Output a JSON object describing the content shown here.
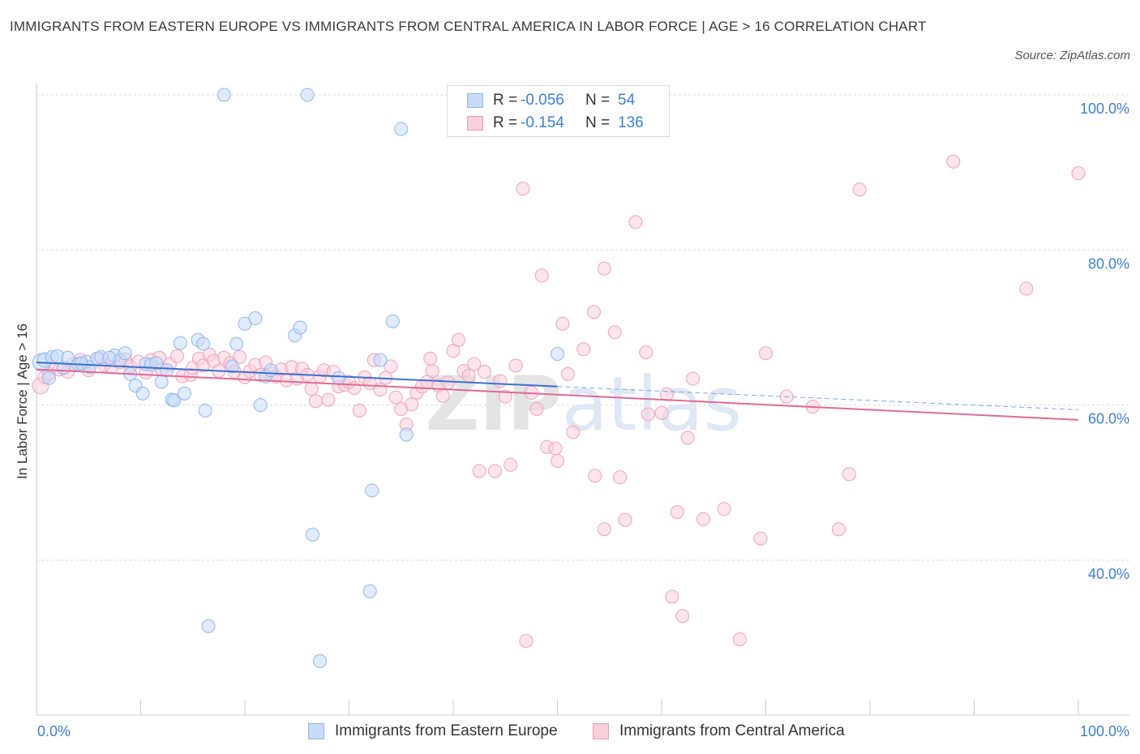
{
  "title": "IMMIGRANTS FROM EASTERN EUROPE VS IMMIGRANTS FROM CENTRAL AMERICA IN LABOR FORCE | AGE > 16 CORRELATION CHART",
  "source": "Source: ZipAtlas.com",
  "watermark": "ZIPatlas",
  "legend": {
    "series1": {
      "r_label": "R =",
      "r_value": "-0.056",
      "n_label": "N =",
      "n_value": "54",
      "color": "#8fb8f0",
      "fill": "#c7dbf7"
    },
    "series2": {
      "r_label": "R =",
      "r_value": "-0.154",
      "n_label": "N =",
      "n_value": "136",
      "color": "#f29bb5",
      "fill": "#f9cfdc"
    }
  },
  "chart_data": {
    "type": "scatter",
    "title": "IMMIGRANTS FROM EASTERN EUROPE VS IMMIGRANTS FROM CENTRAL AMERICA IN LABOR FORCE | AGE > 16 CORRELATION CHART",
    "xlabel": "",
    "ylabel": "In Labor Force | Age > 16",
    "xlim": [
      0,
      100
    ],
    "ylim": [
      20,
      100
    ],
    "x_tick_labels": [
      "0.0%",
      "100.0%"
    ],
    "y_tick_labels": [
      "100.0%",
      "80.0%",
      "60.0%",
      "40.0%"
    ],
    "y_ticks": [
      100,
      80,
      60,
      40
    ],
    "grid": true,
    "legend_position": "top-center",
    "series": [
      {
        "name": "Immigrants from Eastern Europe",
        "color": "#5b93e0",
        "fill": "#c7dbf7",
        "trend": {
          "x": [
            0,
            50
          ],
          "y": [
            65.5,
            62.4
          ],
          "extended_to": [
            100,
            59.4
          ]
        },
        "points": [
          [
            0.5,
            65.5,
            9
          ],
          [
            0.8,
            65.8,
            7
          ],
          [
            1.2,
            63.5,
            6
          ],
          [
            1.5,
            66.2,
            6
          ],
          [
            2.0,
            66.3,
            6
          ],
          [
            2.6,
            64.8,
            6
          ],
          [
            3.0,
            66.1,
            6
          ],
          [
            4.0,
            65.3,
            6
          ],
          [
            4.8,
            65.6,
            6
          ],
          [
            5.1,
            64.9,
            6
          ],
          [
            5.8,
            66.0,
            6
          ],
          [
            6.2,
            66.2,
            6
          ],
          [
            7.5,
            66.4,
            6
          ],
          [
            8.0,
            65.8,
            6
          ],
          [
            8.5,
            66.7,
            6
          ],
          [
            9.0,
            64.0,
            6
          ],
          [
            9.5,
            62.5,
            6
          ],
          [
            10.2,
            61.5,
            6
          ],
          [
            10.5,
            65.3,
            6
          ],
          [
            11.0,
            65.2,
            6
          ],
          [
            11.5,
            65.4,
            6
          ],
          [
            12.0,
            63.0,
            6
          ],
          [
            12.5,
            64.5,
            6
          ],
          [
            13.0,
            60.7,
            6
          ],
          [
            13.2,
            60.6,
            6
          ],
          [
            13.8,
            68.0,
            6
          ],
          [
            14.2,
            61.5,
            6
          ],
          [
            15.5,
            68.4,
            6
          ],
          [
            16.0,
            67.9,
            6
          ],
          [
            16.2,
            59.3,
            6
          ],
          [
            16.5,
            31.5,
            6
          ],
          [
            18.0,
            100.0,
            6
          ],
          [
            18.8,
            65.0,
            6
          ],
          [
            19.2,
            67.9,
            6
          ],
          [
            20.0,
            70.5,
            6
          ],
          [
            21.0,
            71.2,
            6
          ],
          [
            21.5,
            60.0,
            6
          ],
          [
            22.0,
            63.7,
            6
          ],
          [
            22.5,
            64.5,
            6
          ],
          [
            24.8,
            69.0,
            6
          ],
          [
            25.3,
            70.0,
            6
          ],
          [
            26.0,
            100.0,
            6
          ],
          [
            26.5,
            43.3,
            6
          ],
          [
            27.2,
            27.0,
            6
          ],
          [
            29.0,
            63.5,
            6
          ],
          [
            32.0,
            36.0,
            6
          ],
          [
            32.2,
            49.0,
            6
          ],
          [
            33.0,
            65.8,
            6
          ],
          [
            34.2,
            70.8,
            6
          ],
          [
            35.0,
            95.6,
            6
          ],
          [
            35.5,
            56.2,
            6
          ],
          [
            50.0,
            66.6,
            6
          ],
          [
            4.3,
            65.4,
            6
          ],
          [
            7.0,
            66.1,
            6
          ]
        ]
      },
      {
        "name": "Immigrants from Central America",
        "color": "#e8739a",
        "fill": "#f9cfdc",
        "trend": {
          "x": [
            0,
            100
          ],
          "y": [
            64.6,
            58.1
          ]
        },
        "points": [
          [
            0.4,
            62.5,
            8
          ],
          [
            0.8,
            63.6,
            6
          ],
          [
            1.2,
            64.0,
            6
          ],
          [
            1.5,
            65.0,
            6
          ],
          [
            2.2,
            64.6,
            6
          ],
          [
            3.0,
            64.3,
            6
          ],
          [
            3.5,
            65.3,
            6
          ],
          [
            4.2,
            65.8,
            6
          ],
          [
            5.0,
            64.5,
            6
          ],
          [
            6.0,
            66.0,
            6
          ],
          [
            6.5,
            65.2,
            6
          ],
          [
            7.2,
            64.9,
            6
          ],
          [
            8.0,
            65.5,
            6
          ],
          [
            8.5,
            65.9,
            6
          ],
          [
            9.0,
            65.0,
            6
          ],
          [
            9.8,
            65.6,
            6
          ],
          [
            10.5,
            64.2,
            6
          ],
          [
            11.0,
            65.8,
            6
          ],
          [
            11.8,
            66.1,
            6
          ],
          [
            12.0,
            64.6,
            6
          ],
          [
            12.8,
            65.3,
            6
          ],
          [
            13.5,
            66.3,
            6
          ],
          [
            14.0,
            63.7,
            6
          ],
          [
            14.8,
            63.9,
            6
          ],
          [
            15.0,
            64.8,
            6
          ],
          [
            15.6,
            66.0,
            6
          ],
          [
            16.0,
            65.1,
            6
          ],
          [
            16.6,
            66.5,
            6
          ],
          [
            17.0,
            65.7,
            6
          ],
          [
            17.5,
            64.4,
            6
          ],
          [
            18.0,
            66.1,
            6
          ],
          [
            18.6,
            65.4,
            6
          ],
          [
            19.0,
            64.3,
            6
          ],
          [
            19.5,
            66.2,
            6
          ],
          [
            20.0,
            63.6,
            6
          ],
          [
            20.5,
            64.4,
            6
          ],
          [
            21.0,
            65.2,
            6
          ],
          [
            21.5,
            63.9,
            6
          ],
          [
            22.0,
            65.5,
            6
          ],
          [
            22.6,
            64.0,
            6
          ],
          [
            23.0,
            63.7,
            6
          ],
          [
            23.5,
            64.6,
            6
          ],
          [
            24.0,
            63.2,
            6
          ],
          [
            24.5,
            64.9,
            6
          ],
          [
            25.0,
            63.4,
            6
          ],
          [
            25.5,
            64.7,
            6
          ],
          [
            26.0,
            63.9,
            6
          ],
          [
            26.4,
            62.1,
            6
          ],
          [
            26.8,
            60.5,
            6
          ],
          [
            27.2,
            63.7,
            6
          ],
          [
            27.6,
            64.5,
            6
          ],
          [
            28.0,
            60.7,
            6
          ],
          [
            28.5,
            64.3,
            6
          ],
          [
            29.0,
            62.4,
            6
          ],
          [
            29.6,
            62.6,
            6
          ],
          [
            30.0,
            63.0,
            6
          ],
          [
            30.5,
            62.2,
            6
          ],
          [
            31.0,
            59.3,
            6
          ],
          [
            31.5,
            63.6,
            6
          ],
          [
            32.0,
            62.8,
            6
          ],
          [
            32.4,
            65.8,
            6
          ],
          [
            33.0,
            62.0,
            6
          ],
          [
            33.5,
            63.5,
            6
          ],
          [
            34.0,
            65.0,
            6
          ],
          [
            34.5,
            61.0,
            6
          ],
          [
            35.0,
            59.5,
            6
          ],
          [
            35.5,
            57.5,
            6
          ],
          [
            36.0,
            60.1,
            6
          ],
          [
            36.5,
            61.6,
            6
          ],
          [
            37.0,
            62.4,
            6
          ],
          [
            37.5,
            63.0,
            6
          ],
          [
            38.0,
            64.4,
            6
          ],
          [
            38.6,
            62.5,
            6
          ],
          [
            39.0,
            61.2,
            6
          ],
          [
            39.5,
            62.9,
            6
          ],
          [
            40.0,
            67.0,
            6
          ],
          [
            40.5,
            68.4,
            6
          ],
          [
            41.0,
            64.4,
            6
          ],
          [
            41.5,
            63.8,
            6
          ],
          [
            42.0,
            65.3,
            6
          ],
          [
            42.5,
            51.5,
            6
          ],
          [
            43.0,
            64.3,
            6
          ],
          [
            44.0,
            51.5,
            6
          ],
          [
            44.5,
            63.1,
            6
          ],
          [
            45.0,
            61.1,
            6
          ],
          [
            45.5,
            52.3,
            6
          ],
          [
            46.0,
            65.1,
            6
          ],
          [
            46.7,
            87.9,
            6
          ],
          [
            47.5,
            61.6,
            6
          ],
          [
            48.0,
            59.5,
            6
          ],
          [
            48.5,
            76.7,
            6
          ],
          [
            49.0,
            54.6,
            6
          ],
          [
            49.8,
            54.4,
            6
          ],
          [
            50.0,
            52.8,
            6
          ],
          [
            50.5,
            70.5,
            6
          ],
          [
            51.0,
            64.0,
            6
          ],
          [
            51.5,
            56.5,
            6
          ],
          [
            52.5,
            67.2,
            6
          ],
          [
            53.5,
            72.0,
            6
          ],
          [
            53.6,
            50.9,
            6
          ],
          [
            54.5,
            77.6,
            6
          ],
          [
            54.5,
            44.0,
            6
          ],
          [
            55.5,
            69.4,
            6
          ],
          [
            56.0,
            50.7,
            6
          ],
          [
            56.5,
            45.2,
            6
          ],
          [
            57.5,
            83.6,
            6
          ],
          [
            58.5,
            66.8,
            6
          ],
          [
            58.7,
            58.8,
            6
          ],
          [
            60.0,
            59.0,
            6
          ],
          [
            60.5,
            61.4,
            6
          ],
          [
            61.0,
            35.3,
            6
          ],
          [
            61.5,
            46.2,
            6
          ],
          [
            62.0,
            32.8,
            6
          ],
          [
            62.5,
            55.8,
            6
          ],
          [
            63.0,
            63.4,
            6
          ],
          [
            64.0,
            45.3,
            6
          ],
          [
            66.0,
            46.6,
            6
          ],
          [
            67.5,
            29.8,
            6
          ],
          [
            69.5,
            42.8,
            6
          ],
          [
            70.0,
            66.7,
            6
          ],
          [
            72.0,
            61.1,
            6
          ],
          [
            74.5,
            59.8,
            6
          ],
          [
            77.0,
            44.0,
            6
          ],
          [
            78.0,
            51.1,
            6
          ],
          [
            79.0,
            87.8,
            6
          ],
          [
            88.0,
            91.4,
            6
          ],
          [
            95.0,
            75.0,
            6
          ],
          [
            100.0,
            89.9,
            6
          ],
          [
            47.0,
            29.6,
            6
          ],
          [
            37.8,
            66.0,
            6
          ]
        ]
      }
    ]
  }
}
